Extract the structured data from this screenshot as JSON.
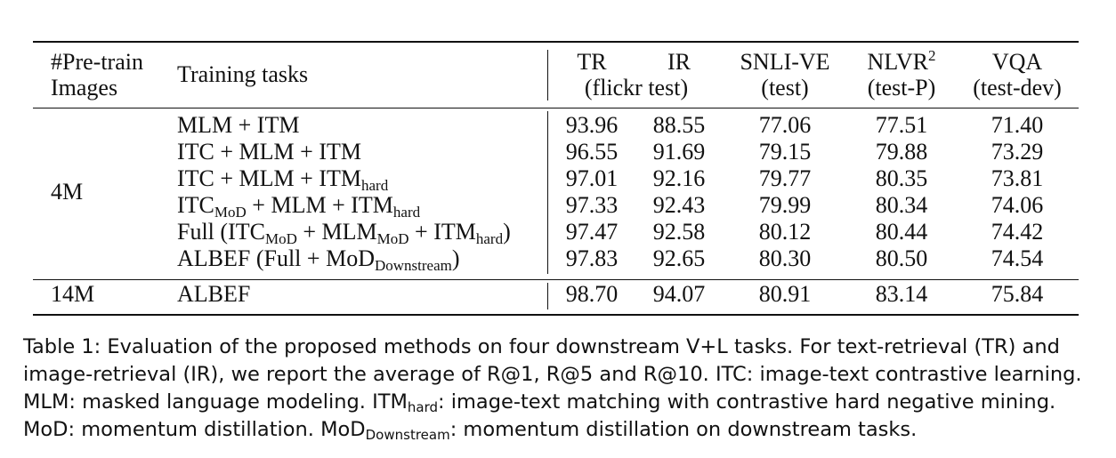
{
  "header": {
    "pretrain_line1": "#Pre-train",
    "pretrain_line2": "Images",
    "tasks": "Training tasks",
    "tr": "TR",
    "ir": "IR",
    "flickr": "(flickr test)",
    "snli": "SNLI-VE",
    "snli_sub": "(test)",
    "nlvr": "NLVR",
    "nlvr_sup": "2",
    "nlvr_sub": "(test-P)",
    "vqa": "VQA",
    "vqa_sub": "(test-dev)"
  },
  "group_4m": "4M",
  "group_14m": "14M",
  "rows": [
    {
      "task": [
        "MLM + ITM"
      ],
      "tr": "93.96",
      "ir": "88.55",
      "snli": "77.06",
      "nlvr": "77.51",
      "vqa": "71.40"
    },
    {
      "task": [
        "ITC + MLM + ITM"
      ],
      "tr": "96.55",
      "ir": "91.69",
      "snli": "79.15",
      "nlvr": "79.88",
      "vqa": "73.29"
    },
    {
      "task": [
        "ITC + MLM + ITM",
        "hard"
      ],
      "tr": "97.01",
      "ir": "92.16",
      "snli": "79.77",
      "nlvr": "80.35",
      "vqa": "73.81"
    },
    {
      "task": [
        "ITC",
        "MoD",
        " + MLM + ITM",
        "hard"
      ],
      "tr": "97.33",
      "ir": "92.43",
      "snli": "79.99",
      "nlvr": "80.34",
      "vqa": "74.06"
    },
    {
      "task": [
        "Full (ITC",
        "MoD",
        " + MLM",
        "MoD",
        " + ITM",
        "hard",
        ")"
      ],
      "tr": "97.47",
      "ir": "92.58",
      "snli": "80.12",
      "nlvr": "80.44",
      "vqa": "74.42"
    },
    {
      "task": [
        "ALBEF (Full + MoD",
        "Downstream",
        ")"
      ],
      "tr": "97.83",
      "ir": "92.65",
      "snli": "80.30",
      "nlvr": "80.50",
      "vqa": "74.54"
    }
  ],
  "row_14m": {
    "task": "ALBEF",
    "tr": "98.70",
    "ir": "94.07",
    "snli": "80.91",
    "nlvr": "83.14",
    "vqa": "75.84"
  },
  "caption": {
    "p1": "Table 1:  Evaluation of the proposed methods on four downstream V+L tasks.  For text-retrieval (TR) and image-retrieval (IR), we report the average of R@1, R@5 and R@10.  ITC: image-text contrastive learning. MLM: masked language modeling. ITM",
    "p1_sub": "hard",
    "p2": ": image-text matching with contrastive hard negative mining. MoD: momentum distillation. MoD",
    "p2_sub": "Downstream",
    "p3": ": momentum distillation on downstream tasks."
  }
}
